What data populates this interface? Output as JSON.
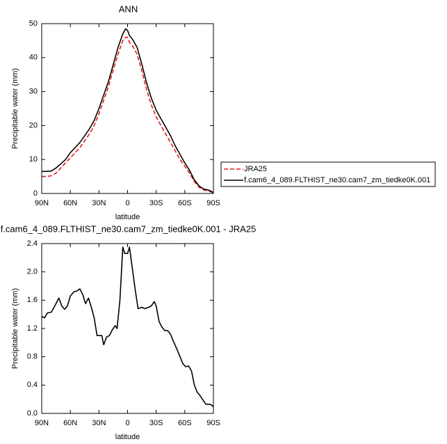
{
  "chart_data": [
    {
      "type": "line",
      "title": "ANN",
      "x_label": "latitude",
      "y_label": "Precipitable water (mm)",
      "x": [
        90,
        85,
        80,
        75,
        70,
        65,
        60,
        55,
        50,
        45,
        40,
        35,
        30,
        25,
        20,
        15,
        10,
        5,
        2,
        0,
        -2,
        -5,
        -10,
        -15,
        -20,
        -25,
        -30,
        -35,
        -40,
        -45,
        -50,
        -55,
        -60,
        -65,
        -70,
        -75,
        -80,
        -85,
        -90
      ],
      "series": [
        {
          "name": "JRA25",
          "color": "#e41a1c",
          "line_style": "dashed",
          "values": [
            5,
            5,
            5.2,
            6,
            7.5,
            9,
            10.5,
            12,
            13.5,
            15.5,
            17.5,
            20,
            23.5,
            27.5,
            31.5,
            36.5,
            41,
            45,
            46,
            46,
            44.5,
            43.5,
            41,
            36,
            30.5,
            26,
            22.5,
            20,
            17.5,
            15,
            12.5,
            10,
            8,
            6,
            3.5,
            1.8,
            1.0,
            0.7,
            0.2
          ]
        },
        {
          "name": "f.cam6_4_089.FLTHIST_ne30.cam7_zm_tiedke0K.001",
          "color": "#000000",
          "line_style": "solid",
          "values": [
            6.5,
            6.5,
            6.6,
            7.5,
            8.7,
            10,
            12,
            13.5,
            15,
            17,
            19,
            21.5,
            25,
            29,
            33,
            38,
            43,
            47,
            48.5,
            48,
            46.5,
            45.5,
            43,
            38,
            32.5,
            28,
            24.5,
            22,
            19.5,
            17,
            14,
            11.5,
            9,
            6.8,
            4,
            2.2,
            1.3,
            1,
            0.3
          ]
        }
      ],
      "xlim": [
        90,
        -90
      ],
      "xticks": [
        {
          "value": 90,
          "label": "90N"
        },
        {
          "value": 60,
          "label": "60N"
        },
        {
          "value": 30,
          "label": "30N"
        },
        0,
        {
          "value": -30,
          "label": "30S"
        },
        {
          "value": -60,
          "label": "60S"
        },
        {
          "value": -90,
          "label": "90S"
        }
      ],
      "ylim": [
        0,
        50
      ],
      "yticks": [
        0,
        10,
        20,
        30,
        40,
        50
      ],
      "legend": "right"
    },
    {
      "type": "line",
      "title": "f.cam6_4_089.FLTHIST_ne30.cam7_zm_tiedke0K.001 - JRA25",
      "x_label": "latitude",
      "y_label": "Precipitable water (mm)",
      "x": [
        90,
        87,
        84,
        80,
        77,
        72,
        69,
        66,
        63,
        60,
        56,
        53,
        50,
        47,
        44,
        41,
        38,
        35,
        32,
        29,
        27,
        25,
        22,
        19,
        16,
        13,
        11,
        8,
        5,
        3,
        0,
        -2,
        -5,
        -8,
        -11,
        -15,
        -18,
        -22,
        -25,
        -28,
        -30,
        -33,
        -36,
        -39,
        -42,
        -45,
        -48,
        -52,
        -55,
        -58,
        -61,
        -64,
        -67,
        -70,
        -73,
        -76,
        -79,
        -82,
        -85,
        -88,
        -90
      ],
      "values": [
        1.37,
        1.35,
        1.42,
        1.43,
        1.5,
        1.63,
        1.52,
        1.47,
        1.52,
        1.66,
        1.72,
        1.73,
        1.76,
        1.68,
        1.55,
        1.63,
        1.5,
        1.35,
        1.1,
        1.1,
        1.1,
        0.97,
        1.08,
        1.1,
        1.18,
        1.24,
        1.2,
        1.6,
        2.35,
        2.26,
        2.26,
        2.35,
        2.05,
        1.75,
        1.48,
        1.5,
        1.48,
        1.5,
        1.52,
        1.58,
        1.52,
        1.3,
        1.22,
        1.17,
        1.17,
        1.12,
        1.02,
        0.9,
        0.8,
        0.7,
        0.66,
        0.67,
        0.6,
        0.4,
        0.3,
        0.25,
        0.19,
        0.13,
        0.13,
        0.12,
        0.09
      ],
      "color": "#000000",
      "xlim": [
        90,
        -90
      ],
      "xticks": [
        {
          "value": 90,
          "label": "90N"
        },
        {
          "value": 60,
          "label": "60N"
        },
        {
          "value": 30,
          "label": "30N"
        },
        0,
        {
          "value": -30,
          "label": "30S"
        },
        {
          "value": -60,
          "label": "60S"
        },
        {
          "value": -90,
          "label": "90S"
        }
      ],
      "ylim": [
        0,
        2.4
      ],
      "yticks": [
        {
          "value": 0,
          "label": "0.0"
        },
        0.4,
        0.8,
        1.2,
        1.6,
        {
          "value": 2,
          "label": "2.0"
        },
        2.4
      ]
    }
  ]
}
